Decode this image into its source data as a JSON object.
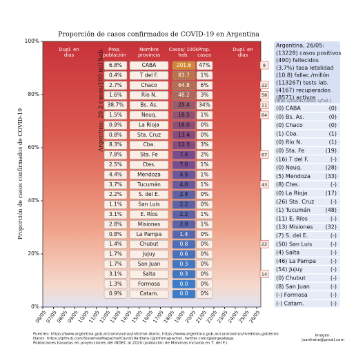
{
  "chart_data": {
    "type": "stacked-area-table",
    "title": "Proporción de casos confirmados de COVID-19 en Argentina",
    "y_label": "Proporción de casos confirmados de COVID-19",
    "ylim": [
      0,
      100
    ],
    "yticks": [
      {
        "value": 0,
        "label": "0%"
      },
      {
        "value": 20,
        "label": "20%"
      },
      {
        "value": 40,
        "label": "40%"
      },
      {
        "value": 60,
        "label": "60%"
      },
      {
        "value": 80,
        "label": "80%"
      },
      {
        "value": 100,
        "label": "100%"
      }
    ],
    "categories": [
      "06/05",
      "07/05",
      "08/05",
      "09/05",
      "10/05",
      "11/05",
      "12/05",
      "13/05",
      "14/05",
      "15/05",
      "16/05",
      "17/05",
      "18/05",
      "19/05",
      "20/05",
      "21/05",
      "22/05",
      "23/05",
      "24/05",
      "25/05",
      "26/05"
    ],
    "headers": [
      "Dupl. en días",
      "Prop. población",
      "Nombre provincia",
      "Casos/ 100k hab.",
      "Prop. casos",
      "Dupl. en días"
    ],
    "rotated_note": "Argentina: 29.2 casos/100 mil hab.",
    "rows": [
      [
        "6.8%",
        "CABA",
        "201.6",
        "47%",
        "9"
      ],
      [
        "0.4%",
        "T del F.",
        "83.7",
        "1%",
        null
      ],
      [
        "2.7%",
        "Chaco",
        "64.8",
        "6%",
        "22"
      ],
      [
        "1.6%",
        "Río N.",
        "48.2",
        "3%",
        "58"
      ],
      [
        "38.7%",
        "Bs. As.",
        "25.4",
        "34%",
        "11"
      ],
      [
        "1.5%",
        "Neuq.",
        "18.5",
        "1%",
        "64"
      ],
      [
        "0.9%",
        "La Rioja",
        "16.0",
        "0%",
        null
      ],
      [
        "0.8%",
        "Sta. Cruz",
        "13.4",
        "0%",
        null
      ],
      [
        "8.3%",
        "Cba.",
        "12.3",
        "3%",
        null
      ],
      [
        "7.8%",
        "Sta. Fe",
        "7.4",
        "2%",
        "67"
      ],
      [
        "2.5%",
        "Ctes.",
        "7.0",
        "1%",
        null
      ],
      [
        "4.4%",
        "Mendoza",
        "4.5",
        "1%",
        null
      ],
      [
        "3.7%",
        "Tucumán",
        "4.0",
        "1%",
        "43"
      ],
      [
        "2.2%",
        "S. del E.",
        "2.4",
        "0%",
        null
      ],
      [
        "1.1%",
        "San Luis",
        "2.2",
        "0%",
        null
      ],
      [
        "3.1%",
        "E. Ríos",
        "2.2",
        "1%",
        null
      ],
      [
        "2.8%",
        "Misiones",
        "2.0",
        "1%",
        null
      ],
      [
        "0.8%",
        "La Pampa",
        "1.4",
        "0%",
        null
      ],
      [
        "1.4%",
        "Chubut",
        "0.8",
        "0%",
        "22"
      ],
      [
        "1.7%",
        "Jujuy",
        "0.6",
        "0%",
        null
      ],
      [
        "1.7%",
        "San Juan",
        "0.3",
        "0%",
        null
      ],
      [
        "3.1%",
        "Salta",
        "0.3",
        "0%",
        "14"
      ],
      [
        "1.3%",
        "Formosa",
        "0.0",
        "0%",
        null
      ],
      [
        "0.9%",
        "Catam.",
        "0.0",
        "0%",
        null
      ]
    ],
    "summary": [
      "Argentina, 26/05:",
      "(13228) casos positivos",
      "(490) fallecidos",
      "(3.7%) tasa letalidad",
      "(10.8) fallec./millón",
      "(113267) tests lab.",
      "(4167) recuperados",
      "(8571) activos"
    ],
    "days_header": "(días s/casos)(días s/fall.)",
    "days": [
      [
        "(0) CABA",
        "(0)"
      ],
      [
        "(0) Bs. As.",
        "(0)"
      ],
      [
        "(0) Chaco",
        "(0)"
      ],
      [
        "(1) Cba.",
        "(1)"
      ],
      [
        "(0) Río N.",
        "(1)"
      ],
      [
        "(0) Sta. Fe",
        "(19)"
      ],
      [
        "(16) T del F.",
        "(-)"
      ],
      [
        "(0) Neuq.",
        "(28)"
      ],
      [
        "(5) Mendoza",
        "(33)"
      ],
      [
        "(8) Ctes.",
        "(-)"
      ],
      [
        "(0) La Rioja",
        "(17)"
      ],
      [
        "(26) Sta. Cruz",
        "(-)"
      ],
      [
        "(1) Tucumán",
        "(48)"
      ],
      [
        "(11) E. Ríos",
        "(-)"
      ],
      [
        "(13) Misiones",
        "(32)"
      ],
      [
        "(7) S. del E.",
        "(-)"
      ],
      [
        "(50) San Luis",
        "(-)"
      ],
      [
        "(4) Salta",
        "(-)"
      ],
      [
        "(46) La Pampa",
        "(-)"
      ],
      [
        "(54) Jujuy",
        "(-)"
      ],
      [
        "(0) Chubut",
        "(-)"
      ],
      [
        "(8) San Juan",
        "(-)"
      ],
      [
        "(-) Formosa",
        "(-)"
      ],
      [
        "(-) Catam.",
        "(-)"
      ]
    ],
    "footer": [
      "Fuentes: https://www.argentina.gob.ar/coronavirus/informe-diario, https://www.argentina.gob.ar/coronavirus/medidas-gobierno",
      "Datos: https://github.com/SistemasMapache/Covid19arData (@infomapache), twitter.com/@jorgealiaga.",
      "Poblaciones basadas en proyecciones del INDEC al 2020 (población de Malvinas incluida en T. del F.)."
    ],
    "credit": [
      "Imagen:",
      "juanfraire@gmail.com"
    ]
  }
}
